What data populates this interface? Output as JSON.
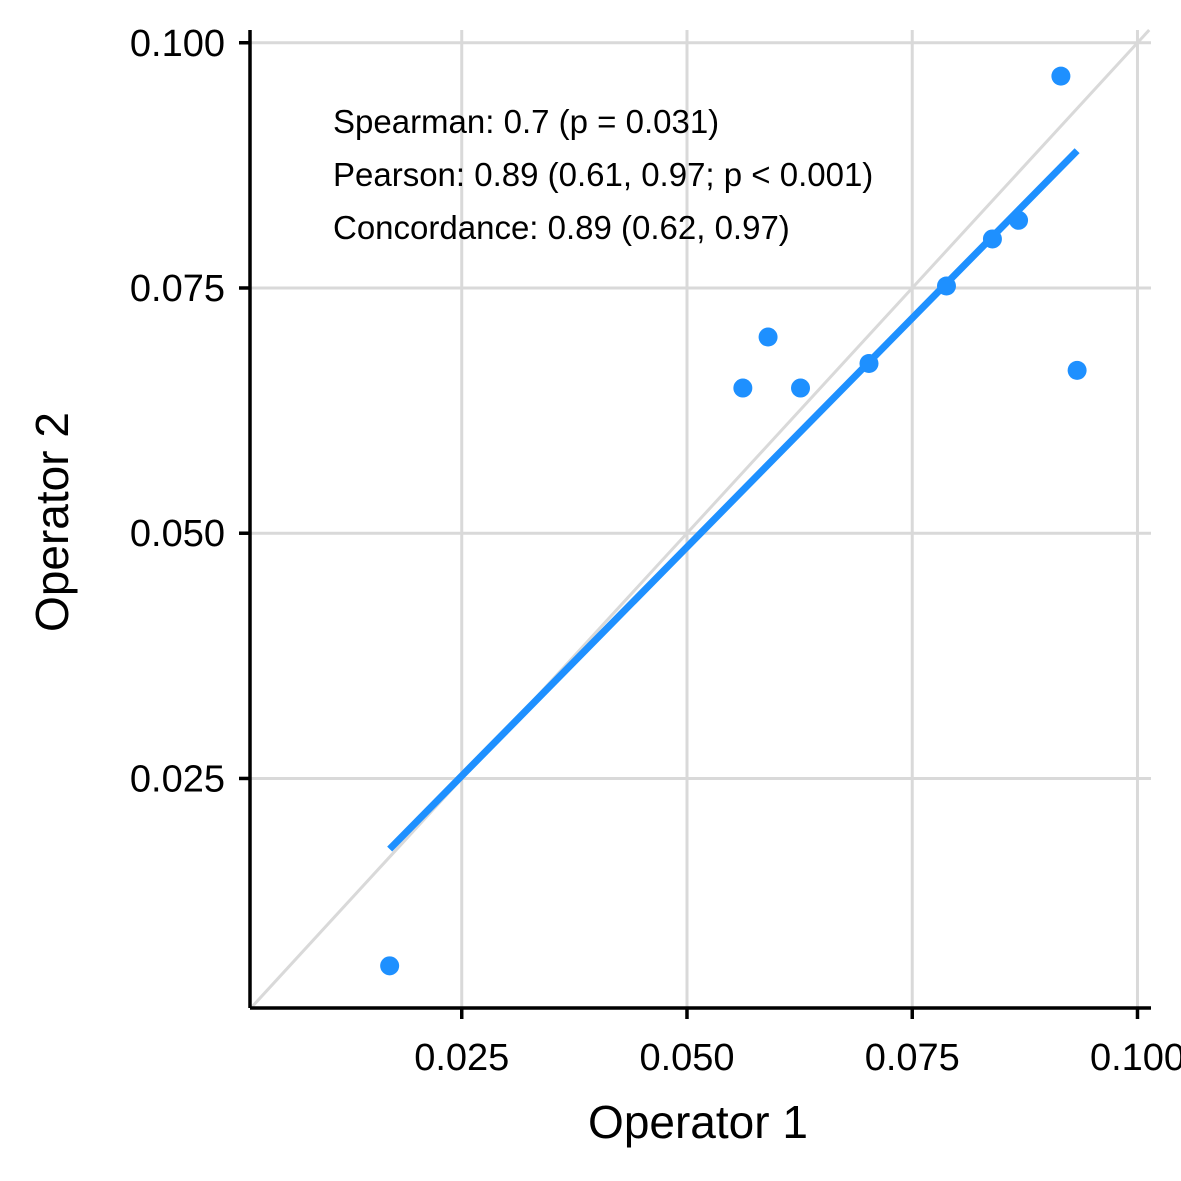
{
  "chart_data": {
    "type": "scatter",
    "xlabel": "Operator 1",
    "ylabel": "Operator 2",
    "xlim": [
      0.0015,
      0.1015
    ],
    "ylim": [
      0.0016,
      0.1013
    ],
    "x_ticks": [
      "0.025",
      "0.050",
      "0.075",
      "0.100"
    ],
    "y_ticks": [
      "0.025",
      "0.050",
      "0.075",
      "0.100"
    ],
    "grid": true,
    "points": {
      "x": [
        0.017,
        0.0562,
        0.059,
        0.0626,
        0.0702,
        0.0788,
        0.0839,
        0.0868,
        0.0915,
        0.0933
      ],
      "y": [
        0.0059,
        0.0648,
        0.07,
        0.0648,
        0.0673,
        0.0752,
        0.08,
        0.0819,
        0.0966,
        0.0666
      ]
    },
    "fit_line": {
      "x": [
        0.017,
        0.0933
      ],
      "y": [
        0.0178,
        0.089
      ]
    },
    "identity_line": true,
    "annotations": [
      "Spearman: 0.7 (p = 0.031)",
      "Pearson: 0.89 (0.61, 0.97; p < 0.001)",
      "Concordance: 0.89 (0.62, 0.97)"
    ],
    "colors": {
      "series": "#1e90ff",
      "grid": "#d9d9d9",
      "identity": "#d9d9d9",
      "axis": "#000000"
    }
  }
}
